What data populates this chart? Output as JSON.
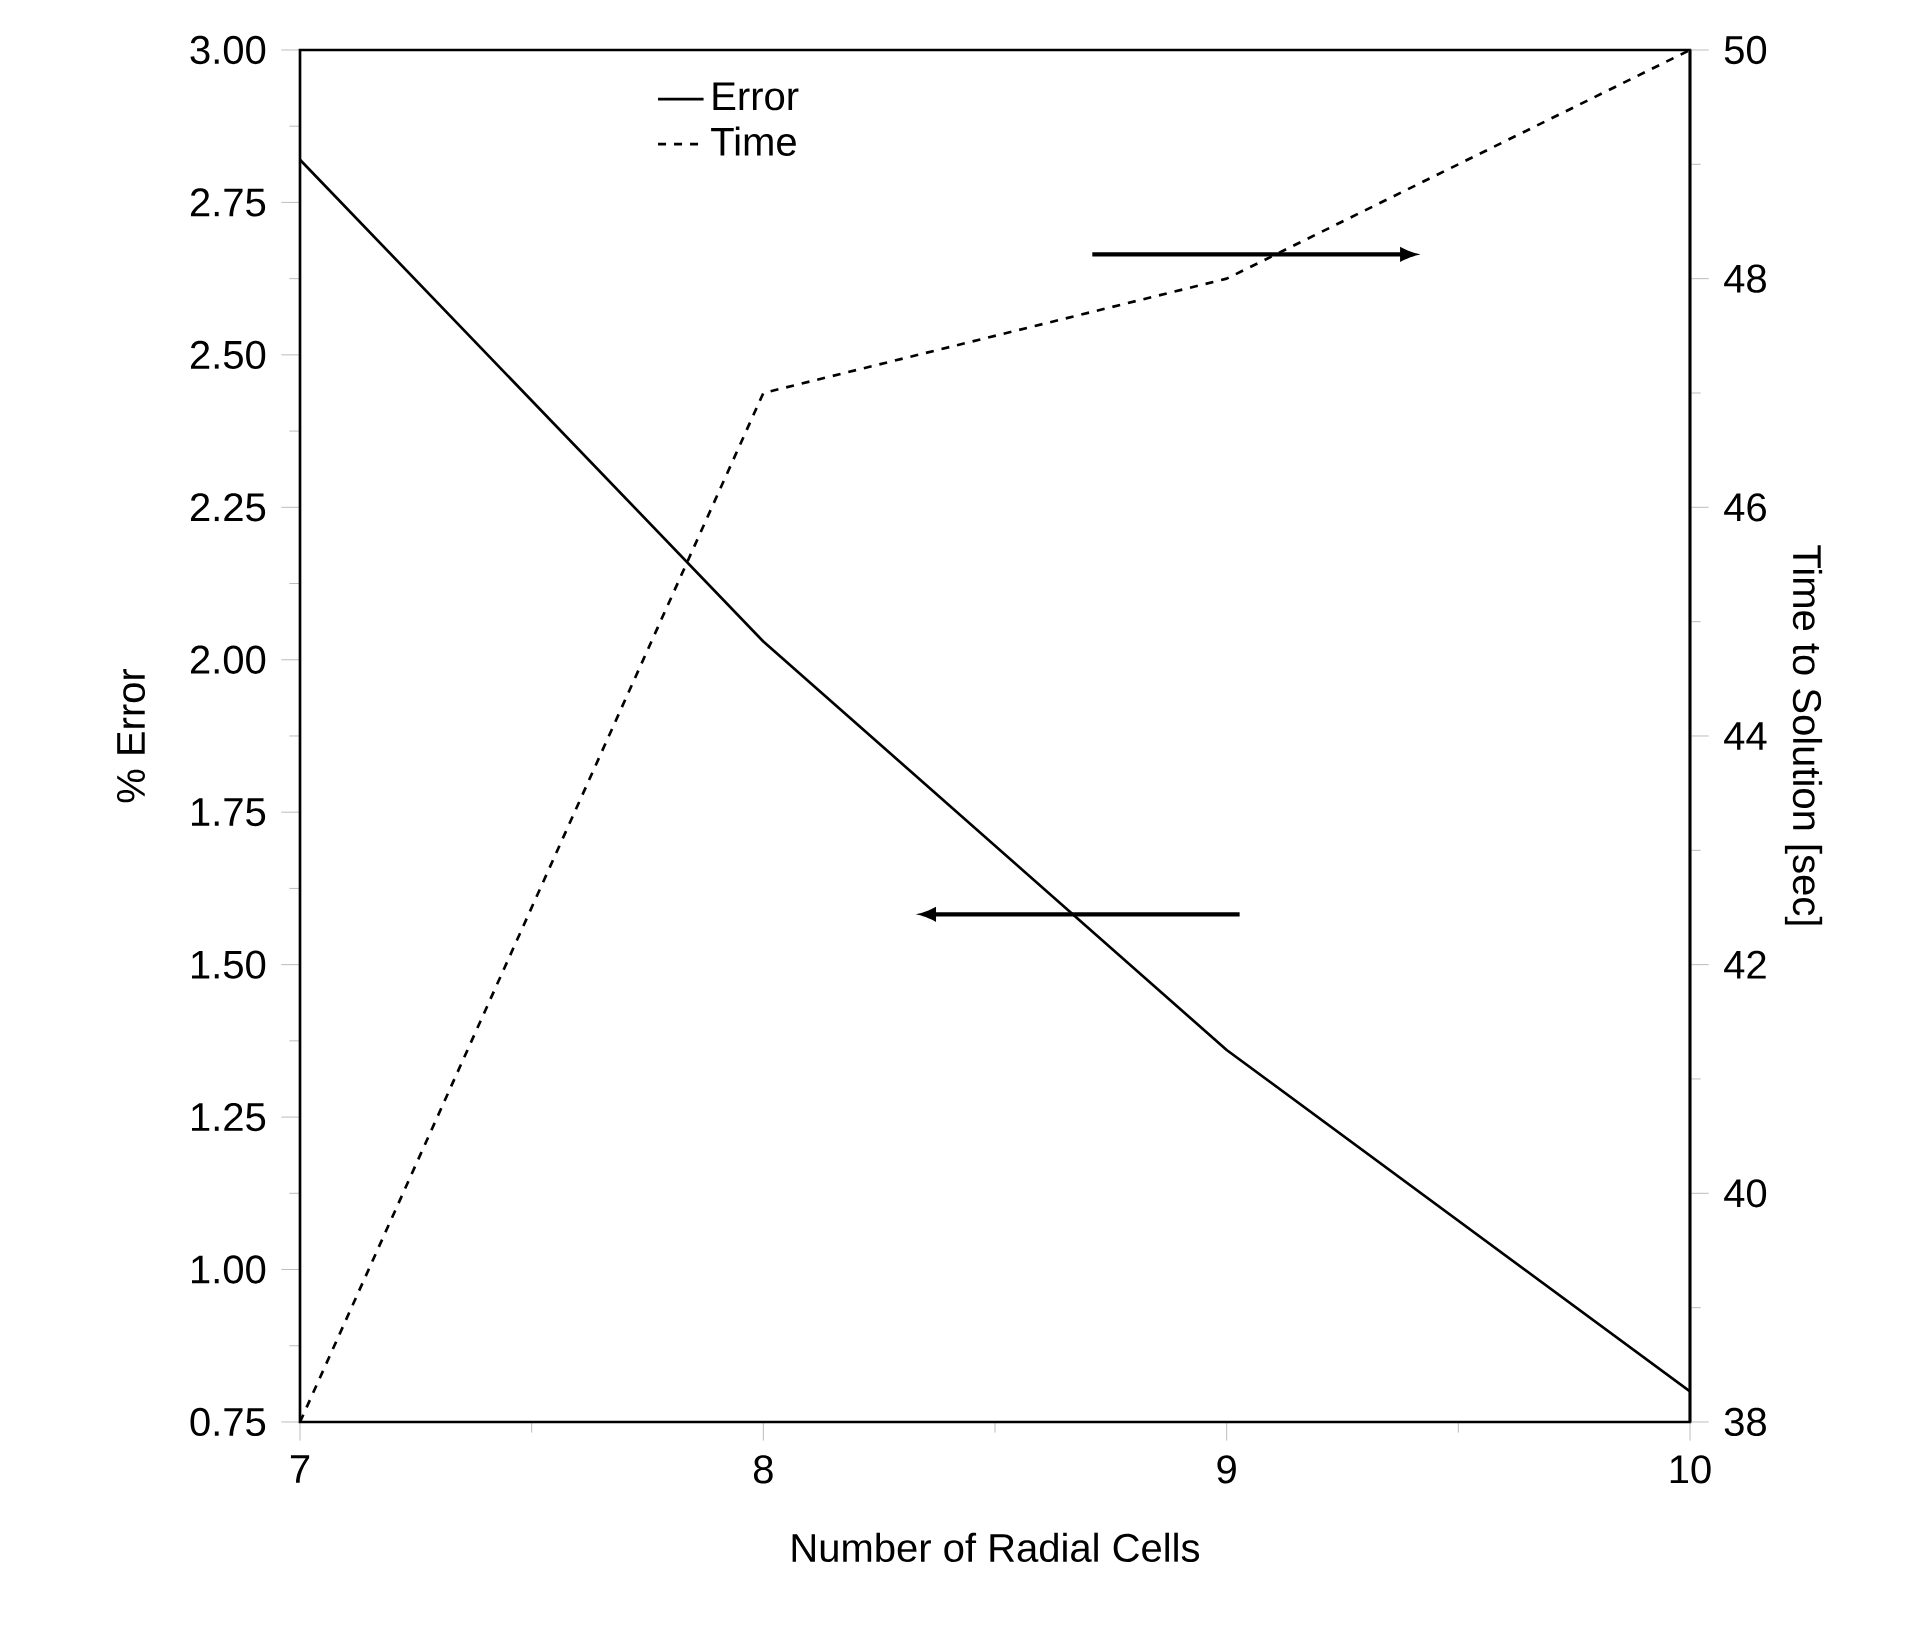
{
  "chart_data": {
    "type": "line",
    "xlabel": "Number of Radial Cells",
    "ylabel": "% Error",
    "y2label": "Time to Solution [sec]",
    "x": [
      7,
      8,
      9,
      10
    ],
    "xlim": [
      7,
      10
    ],
    "xticks": [
      7,
      8,
      9,
      10
    ],
    "ylim": [
      0.75,
      3.0
    ],
    "yticks": [
      {
        "value": 0.75,
        "label": "0.75"
      },
      {
        "value": 1.0,
        "label": "1.00"
      },
      {
        "value": 1.25,
        "label": "1.25"
      },
      {
        "value": 1.5,
        "label": "1.50"
      },
      {
        "value": 1.75,
        "label": "1.75"
      },
      {
        "value": 2.0,
        "label": "2.00"
      },
      {
        "value": 2.25,
        "label": "2.25"
      },
      {
        "value": 2.5,
        "label": "2.50"
      },
      {
        "value": 2.75,
        "label": "2.75"
      },
      {
        "value": 3.0,
        "label": "3.00"
      }
    ],
    "y2lim": [
      38,
      50
    ],
    "y2ticks": [
      38,
      40,
      42,
      44,
      46,
      48,
      50
    ],
    "legend": "top",
    "marker": "none",
    "series": [
      {
        "name": "Error",
        "color": "#000000",
        "line_style": "solid",
        "values": [
          2.82,
          2.03,
          1.36,
          0.8
        ]
      },
      {
        "name": "Time",
        "color": "#000000",
        "line_style": "dashed",
        "axis": "y2",
        "values": [
          38,
          47,
          48,
          50
        ]
      }
    ]
  }
}
